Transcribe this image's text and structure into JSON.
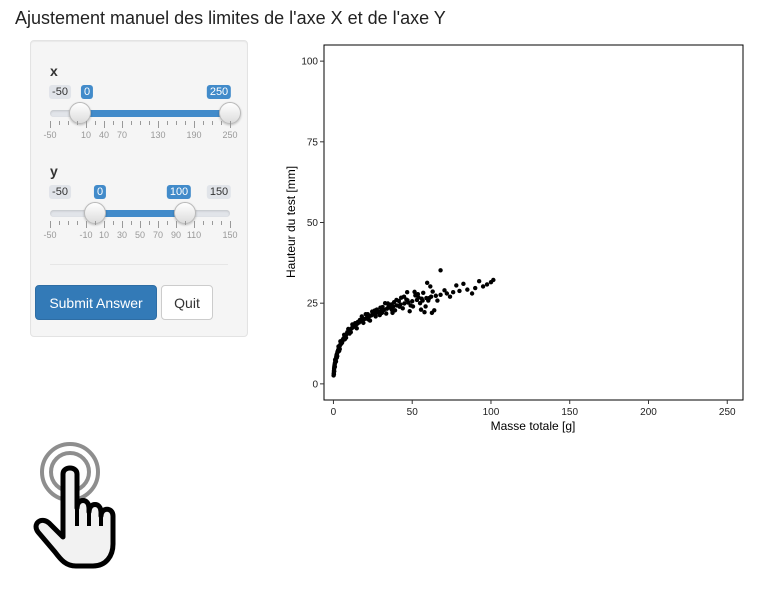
{
  "page": {
    "title": "Ajustement manuel des limites de l'axe X et de l'axe Y"
  },
  "sliders": {
    "x": {
      "label": "x",
      "min": -50,
      "max": 250,
      "from": 0,
      "to": 250,
      "min_label": "-50",
      "from_label": "0",
      "to_label": "250",
      "ticks": [
        "-50",
        "10",
        "40",
        "70",
        "130",
        "190",
        "250"
      ]
    },
    "y": {
      "label": "y",
      "min": -50,
      "max": 150,
      "from": 0,
      "to": 100,
      "min_label": "-50",
      "from_label": "0",
      "to_label": "100",
      "max_label": "150",
      "ticks": [
        "-50",
        "-10",
        "10",
        "30",
        "50",
        "70",
        "90",
        "110",
        "150"
      ]
    }
  },
  "buttons": {
    "submit_label": "Submit Answer",
    "quit_label": "Quit"
  },
  "colors": {
    "primary": "#337ab7",
    "slider_bar": "#428bca",
    "points": "#000000"
  },
  "icons": {
    "pointer": "hand-pointer-icon"
  },
  "chart_data": {
    "type": "scatter",
    "title": "",
    "xlabel": "Masse totale  [g]",
    "ylabel": "Hauteur du test  [mm]",
    "xlim": [
      -6,
      260
    ],
    "ylim": [
      -5,
      105
    ],
    "xticks": [
      0,
      50,
      100,
      150,
      200,
      250
    ],
    "yticks": [
      0,
      25,
      50,
      75,
      100
    ],
    "grid": false,
    "series": [
      {
        "points": [
          [
            0.1,
            2.6
          ],
          [
            0.2,
            3.3
          ],
          [
            0.3,
            4.0
          ],
          [
            0.4,
            4.6
          ],
          [
            0.5,
            5.0
          ],
          [
            0.6,
            5.4
          ],
          [
            0.8,
            6.1
          ],
          [
            1.0,
            6.6
          ],
          [
            1.2,
            7.2
          ],
          [
            1.5,
            7.8
          ],
          [
            1.8,
            8.5
          ],
          [
            2.0,
            9.0
          ],
          [
            2.3,
            9.4
          ],
          [
            2.6,
            10.0
          ],
          [
            3.0,
            10.5
          ],
          [
            3.4,
            11.1
          ],
          [
            3.8,
            11.6
          ],
          [
            4.2,
            12.0
          ],
          [
            4.7,
            12.6
          ],
          [
            5.2,
            13.1
          ],
          [
            5.8,
            13.6
          ],
          [
            6.3,
            14.0
          ],
          [
            7.0,
            14.6
          ],
          [
            7.6,
            14.9
          ],
          [
            8.3,
            15.4
          ],
          [
            9.0,
            15.9
          ],
          [
            9.8,
            16.3
          ],
          [
            10.6,
            16.7
          ],
          [
            11.5,
            17.2
          ],
          [
            12.3,
            17.5
          ],
          [
            13.2,
            17.9
          ],
          [
            14.1,
            18.2
          ],
          [
            15.0,
            18.6
          ],
          [
            16.2,
            19.0
          ],
          [
            17.3,
            19.4
          ],
          [
            18.5,
            19.7
          ],
          [
            19.8,
            20.1
          ],
          [
            21.0,
            20.4
          ],
          [
            22.5,
            20.8
          ],
          [
            24.0,
            21.2
          ],
          [
            25.5,
            21.5
          ],
          [
            27.0,
            21.9
          ],
          [
            28.6,
            22.3
          ],
          [
            30.3,
            22.6
          ],
          [
            32.0,
            22.9
          ],
          [
            34.0,
            23.3
          ],
          [
            36.0,
            23.6
          ],
          [
            38.0,
            24.0
          ],
          [
            40.2,
            24.3
          ],
          [
            42.5,
            24.6
          ],
          [
            45.0,
            24.9
          ],
          [
            47.5,
            25.2
          ],
          [
            50.0,
            25.6
          ],
          [
            53.0,
            26.0
          ],
          [
            56.0,
            26.4
          ],
          [
            59.0,
            26.6
          ],
          [
            62.0,
            27.0
          ],
          [
            65.0,
            27.3
          ],
          [
            68.0,
            27.6
          ],
          [
            72.0,
            28.0
          ],
          [
            76.0,
            28.4
          ],
          [
            80.0,
            28.8
          ],
          [
            85.0,
            29.2
          ],
          [
            90.0,
            29.7
          ],
          [
            95.0,
            30.2
          ],
          [
            100.0,
            31.5
          ],
          [
            101.5,
            32.2
          ],
          [
            0.3,
            3.0
          ],
          [
            0.7,
            5.8
          ],
          [
            1.1,
            7.5
          ],
          [
            1.6,
            7.0
          ],
          [
            2.4,
            8.6
          ],
          [
            3.2,
            11.6
          ],
          [
            4.0,
            10.8
          ],
          [
            5.0,
            12.5
          ],
          [
            6.0,
            13.5
          ],
          [
            7.2,
            13.8
          ],
          [
            8.8,
            16.0
          ],
          [
            10.2,
            15.6
          ],
          [
            12.0,
            18.4
          ],
          [
            14.8,
            17.2
          ],
          [
            16.8,
            19.8
          ],
          [
            19.0,
            18.9
          ],
          [
            21.8,
            21.6
          ],
          [
            23.2,
            19.6
          ],
          [
            26.2,
            22.7
          ],
          [
            29.4,
            21.3
          ],
          [
            31.2,
            23.8
          ],
          [
            33.5,
            21.8
          ],
          [
            36.8,
            24.6
          ],
          [
            39.1,
            22.8
          ],
          [
            41.5,
            25.7
          ],
          [
            44.0,
            23.4
          ],
          [
            46.3,
            26.1
          ],
          [
            49.0,
            24.3
          ],
          [
            52.0,
            27.4
          ],
          [
            55.0,
            25.0
          ],
          [
            57.0,
            28.2
          ],
          [
            60.2,
            25.8
          ],
          [
            61.5,
            30.2
          ],
          [
            63.0,
            28.6
          ],
          [
            58.5,
            24.0
          ],
          [
            55.6,
            23.0
          ],
          [
            48.4,
            22.5
          ],
          [
            44.8,
            27.0
          ],
          [
            40.0,
            26.0
          ],
          [
            37.5,
            22.0
          ],
          [
            68.0,
            35.2
          ],
          [
            66.0,
            25.8
          ],
          [
            70.5,
            29.0
          ],
          [
            74.0,
            27.0
          ],
          [
            78.0,
            30.5
          ],
          [
            82.5,
            31.0
          ],
          [
            88.0,
            28.0
          ],
          [
            92.5,
            31.8
          ],
          [
            97.5,
            30.8
          ],
          [
            64.0,
            22.8
          ],
          [
            62.5,
            22.0
          ],
          [
            57.8,
            22.2
          ],
          [
            59.5,
            31.3
          ],
          [
            54.0,
            26.8
          ],
          [
            51.5,
            28.5
          ],
          [
            46.8,
            28.4
          ],
          [
            43.0,
            26.7
          ],
          [
            38.5,
            25.3
          ],
          [
            35.0,
            24.2
          ],
          [
            32.8,
            25.0
          ],
          [
            29.8,
            23.6
          ],
          [
            27.5,
            23.0
          ],
          [
            24.6,
            22.4
          ],
          [
            22.0,
            20.0
          ],
          [
            20.5,
            21.6
          ],
          [
            18.0,
            20.9
          ],
          [
            15.5,
            19.2
          ],
          [
            13.8,
            18.8
          ],
          [
            11.0,
            16.0
          ],
          [
            9.4,
            17.0
          ],
          [
            8.0,
            14.3
          ],
          [
            6.8,
            15.2
          ],
          [
            5.5,
            12.8
          ],
          [
            4.4,
            13.2
          ],
          [
            3.6,
            10.2
          ],
          [
            2.8,
            9.9
          ],
          [
            2.1,
            8.1
          ],
          [
            1.4,
            6.8
          ],
          [
            0.9,
            5.3
          ],
          [
            0.5,
            3.9
          ],
          [
            26.8,
            20.9
          ],
          [
            30.8,
            22.0
          ],
          [
            34.6,
            24.9
          ],
          [
            37.0,
            23.0
          ],
          [
            42.0,
            23.9
          ],
          [
            47.0,
            25.9
          ],
          [
            50.5,
            24.0
          ],
          [
            53.6,
            27.8
          ],
          [
            56.6,
            25.8
          ],
          [
            60.8,
            26.6
          ]
        ]
      }
    ]
  }
}
